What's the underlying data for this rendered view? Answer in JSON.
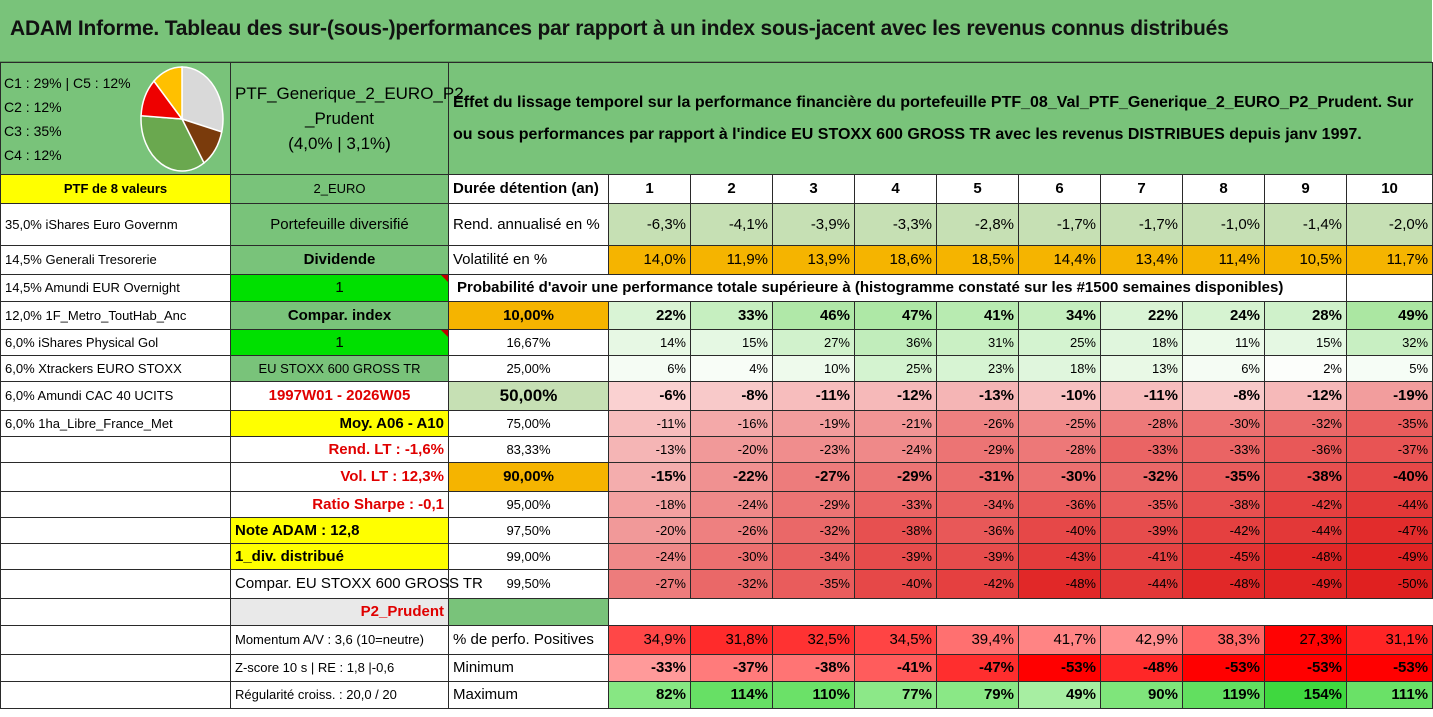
{
  "title": "ADAM Informe. Tableau des sur-(sous-)performances par rapport à un index sous-jacent avec les revenus connus distribués",
  "pie": {
    "legend": [
      "C1 : 29% | C5 : 12%",
      "C2 : 12%",
      "C3 : 35%",
      "C4 : 12%"
    ]
  },
  "chart_data": {
    "type": "pie",
    "labels": [
      "C1",
      "C2",
      "C3",
      "C4",
      "C5"
    ],
    "values": [
      29,
      12,
      35,
      12,
      12
    ],
    "colors": [
      "#d9d9d9",
      "#7a3b0c",
      "#6aa84f",
      "#ee0000",
      "#ffc000"
    ]
  },
  "portfolio": {
    "name_line1": "PTF_Generique_2_EURO_P2",
    "name_line2": "_Prudent",
    "perf": "(4,0% | 3,1%)"
  },
  "description": "Effet du lissage temporel sur la performance financière du portefeuille PTF_08_Val_PTF_Generique_2_EURO_P2_Prudent. Sur ou sous performances par rapport à l'indice EU STOXX 600 GROSS TR avec les revenus DISTRIBUES depuis janv 1997.",
  "left": {
    "header": "PTF de 8 valeurs",
    "holdings": [
      "35,0% iShares Euro Governm",
      "14,5% Generali Tresorerie",
      "14,5% Amundi EUR Overnight",
      "12,0% 1F_Metro_ToutHab_Anc",
      "6,0% iShares Physical Gol",
      "6,0% Xtrackers EURO STOXX",
      "6,0% Amundi CAC 40 UCITS",
      "6,0% 1ha_Libre_France_Met"
    ]
  },
  "mid": {
    "euro": "2_EURO",
    "diversified": "Portefeuille diversifié",
    "dividend": "Dividende",
    "one_a": "1",
    "compar_index": "Compar. index",
    "one_b": "1",
    "index_name": "EU STOXX 600 GROSS TR",
    "period": "1997W01 - 2026W05",
    "moy": "Moy. A06 - A10",
    "rend_lt": "Rend. LT : -1,6%",
    "vol_lt": "Vol. LT : 12,3%",
    "sharpe": "Ratio Sharpe : -0,1",
    "note": "Note ADAM : 12,8",
    "div": "1_div. distribué",
    "compar": "Compar. EU STOXX 600 GROSS TR",
    "p2": "P2_Prudent",
    "momentum": "Momentum A/V : 3,6 (10=neutre)",
    "zscore": "Z-score 10 s | RE : 1,8 |-0,6",
    "regul": "Régularité croiss. : 20,0 / 20"
  },
  "table": {
    "duration_label": "Durée détention (an)",
    "years": [
      "1",
      "2",
      "3",
      "4",
      "5",
      "6",
      "7",
      "8",
      "9",
      "10"
    ],
    "rend_label": "Rend. annualisé en %",
    "rend": [
      "-6,3%",
      "-4,1%",
      "-3,9%",
      "-3,3%",
      "-2,8%",
      "-1,7%",
      "-1,7%",
      "-1,0%",
      "-1,4%",
      "-2,0%"
    ],
    "vol_label": "Volatilité en %",
    "vol": [
      "14,0%",
      "11,9%",
      "13,9%",
      "18,6%",
      "18,5%",
      "14,4%",
      "13,4%",
      "11,4%",
      "10,5%",
      "11,7%"
    ],
    "prob_label": "Probabilité d'avoir une performance totale supérieure à (histogramme constaté sur les #1500 semaines disponibles)",
    "prob_rows": [
      {
        "t": "10,00%",
        "v": [
          "22%",
          "33%",
          "46%",
          "47%",
          "41%",
          "34%",
          "22%",
          "24%",
          "28%",
          "49%"
        ]
      },
      {
        "t": "16,67%",
        "v": [
          "14%",
          "15%",
          "27%",
          "36%",
          "31%",
          "25%",
          "18%",
          "11%",
          "15%",
          "32%"
        ]
      },
      {
        "t": "25,00%",
        "v": [
          "6%",
          "4%",
          "10%",
          "25%",
          "23%",
          "18%",
          "13%",
          "6%",
          "2%",
          "5%"
        ]
      },
      {
        "t": "50,00%",
        "v": [
          "-6%",
          "-8%",
          "-11%",
          "-12%",
          "-13%",
          "-10%",
          "-11%",
          "-8%",
          "-12%",
          "-19%"
        ]
      },
      {
        "t": "75,00%",
        "v": [
          "-11%",
          "-16%",
          "-19%",
          "-21%",
          "-26%",
          "-25%",
          "-28%",
          "-30%",
          "-32%",
          "-35%"
        ]
      },
      {
        "t": "83,33%",
        "v": [
          "-13%",
          "-20%",
          "-23%",
          "-24%",
          "-29%",
          "-28%",
          "-33%",
          "-33%",
          "-36%",
          "-37%"
        ]
      },
      {
        "t": "90,00%",
        "v": [
          "-15%",
          "-22%",
          "-27%",
          "-29%",
          "-31%",
          "-30%",
          "-32%",
          "-35%",
          "-38%",
          "-40%"
        ]
      },
      {
        "t": "95,00%",
        "v": [
          "-18%",
          "-24%",
          "-29%",
          "-33%",
          "-34%",
          "-36%",
          "-35%",
          "-38%",
          "-42%",
          "-44%"
        ]
      },
      {
        "t": "97,50%",
        "v": [
          "-20%",
          "-26%",
          "-32%",
          "-38%",
          "-36%",
          "-40%",
          "-39%",
          "-42%",
          "-44%",
          "-47%"
        ]
      },
      {
        "t": "99,00%",
        "v": [
          "-24%",
          "-30%",
          "-34%",
          "-39%",
          "-39%",
          "-43%",
          "-41%",
          "-45%",
          "-48%",
          "-49%"
        ]
      },
      {
        "t": "99,50%",
        "v": [
          "-27%",
          "-32%",
          "-35%",
          "-40%",
          "-42%",
          "-48%",
          "-44%",
          "-48%",
          "-49%",
          "-50%"
        ]
      }
    ],
    "pos_label": "% de perfo. Positives",
    "pos": [
      "34,9%",
      "31,8%",
      "32,5%",
      "34,5%",
      "39,4%",
      "41,7%",
      "42,9%",
      "38,3%",
      "27,3%",
      "31,1%"
    ],
    "min_label": "Minimum",
    "min": [
      "-33%",
      "-37%",
      "-38%",
      "-41%",
      "-47%",
      "-53%",
      "-48%",
      "-53%",
      "-53%",
      "-53%"
    ],
    "max_label": "Maximum",
    "max": [
      "82%",
      "114%",
      "110%",
      "77%",
      "79%",
      "49%",
      "90%",
      "119%",
      "154%",
      "111%"
    ]
  }
}
